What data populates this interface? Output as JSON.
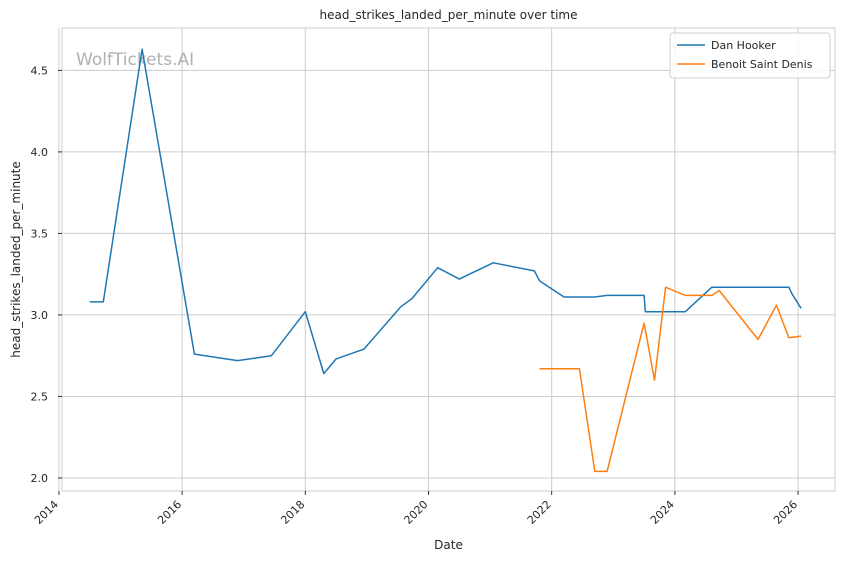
{
  "chart_data": {
    "type": "line",
    "title": "head_strikes_landed_per_minute over time",
    "xlabel": "Date",
    "ylabel": "head_strikes_landed_per_minute",
    "watermark": "WolfTickets.AI",
    "xlim": [
      2014.05,
      2026.6
    ],
    "ylim": [
      1.92,
      4.76
    ],
    "x_ticks": [
      2014,
      2016,
      2018,
      2020,
      2022,
      2024,
      2026
    ],
    "x_tick_labels": [
      "2014",
      "2016",
      "2018",
      "2020",
      "2022",
      "2024",
      "2026"
    ],
    "y_ticks": [
      2.0,
      2.5,
      3.0,
      3.5,
      4.0,
      4.5
    ],
    "y_tick_labels": [
      "2.0",
      "2.5",
      "3.0",
      "3.5",
      "4.0",
      "4.5"
    ],
    "grid": true,
    "legend_position": "top-right",
    "series": [
      {
        "name": "Dan Hooker",
        "color": "#1f77b4",
        "points": [
          [
            2014.5,
            3.08
          ],
          [
            2014.72,
            3.08
          ],
          [
            2015.35,
            4.63
          ],
          [
            2016.2,
            2.76
          ],
          [
            2016.9,
            2.72
          ],
          [
            2017.45,
            2.75
          ],
          [
            2018.0,
            3.02
          ],
          [
            2018.3,
            2.64
          ],
          [
            2018.5,
            2.73
          ],
          [
            2018.95,
            2.79
          ],
          [
            2019.55,
            3.05
          ],
          [
            2019.73,
            3.1
          ],
          [
            2020.15,
            3.29
          ],
          [
            2020.5,
            3.22
          ],
          [
            2021.05,
            3.32
          ],
          [
            2021.72,
            3.27
          ],
          [
            2021.8,
            3.21
          ],
          [
            2022.2,
            3.11
          ],
          [
            2022.7,
            3.11
          ],
          [
            2022.9,
            3.12
          ],
          [
            2023.5,
            3.12
          ],
          [
            2023.52,
            3.02
          ],
          [
            2024.17,
            3.02
          ],
          [
            2024.6,
            3.17
          ],
          [
            2025.85,
            3.17
          ],
          [
            2025.9,
            3.13
          ],
          [
            2026.05,
            3.04
          ]
        ]
      },
      {
        "name": "Benoit Saint Denis",
        "color": "#ff7f0e",
        "points": [
          [
            2021.8,
            2.67
          ],
          [
            2022.45,
            2.67
          ],
          [
            2022.7,
            2.04
          ],
          [
            2022.9,
            2.04
          ],
          [
            2023.5,
            2.95
          ],
          [
            2023.67,
            2.6
          ],
          [
            2023.85,
            3.17
          ],
          [
            2024.17,
            3.12
          ],
          [
            2024.6,
            3.12
          ],
          [
            2024.72,
            3.15
          ],
          [
            2025.35,
            2.85
          ],
          [
            2025.65,
            3.06
          ],
          [
            2025.85,
            2.86
          ],
          [
            2026.05,
            2.87
          ]
        ]
      }
    ]
  }
}
